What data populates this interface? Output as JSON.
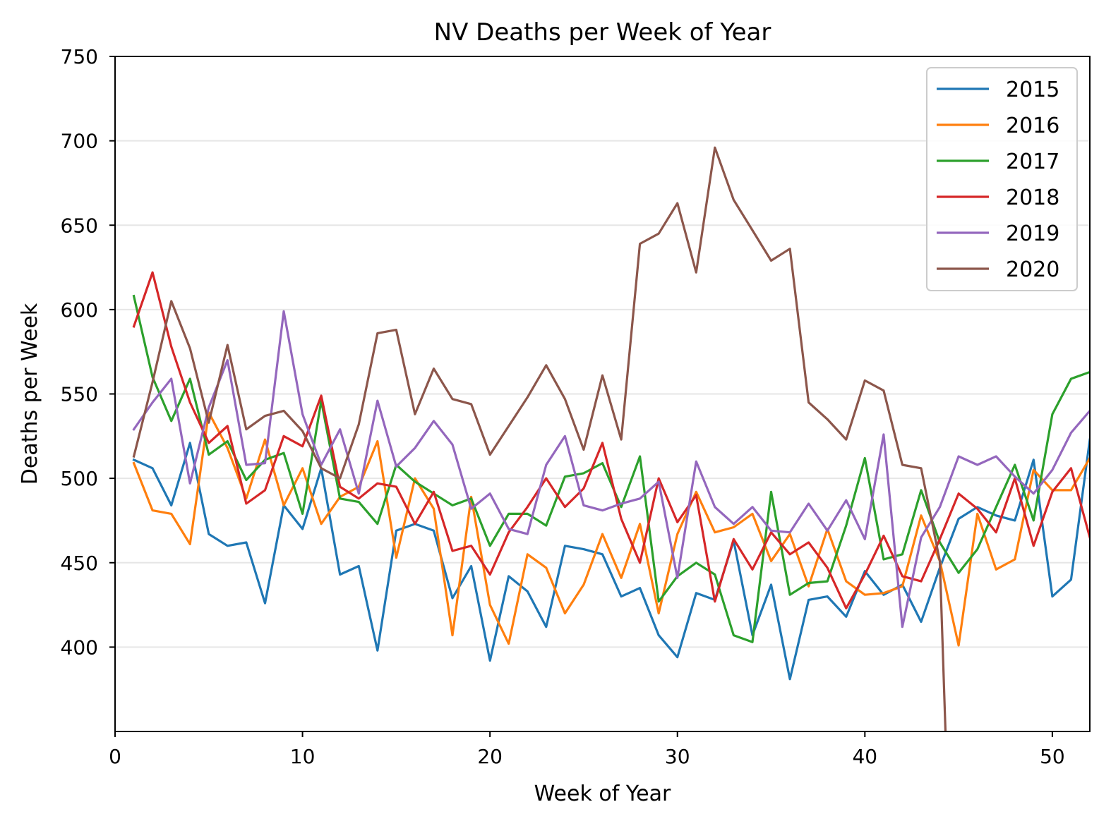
{
  "chart_data": {
    "type": "line",
    "title": "NV Deaths per Week of Year",
    "xlabel": "Week of Year",
    "ylabel": "Deaths per Week",
    "xlim": [
      0,
      52
    ],
    "ylim": [
      350,
      750
    ],
    "xticks": [
      0,
      10,
      20,
      30,
      40,
      50
    ],
    "yticks": [
      400,
      450,
      500,
      550,
      600,
      650,
      700,
      750
    ],
    "grid": "horizontal",
    "legend_position": "upper right",
    "series": [
      {
        "name": "2015",
        "color": "#1f77b4",
        "x": [
          1,
          2,
          3,
          4,
          5,
          6,
          7,
          8,
          9,
          10,
          11,
          12,
          13,
          14,
          15,
          16,
          17,
          18,
          19,
          20,
          21,
          22,
          23,
          24,
          25,
          26,
          27,
          28,
          29,
          30,
          31,
          32,
          33,
          34,
          35,
          36,
          37,
          38,
          39,
          40,
          41,
          42,
          43,
          44,
          45,
          46,
          47,
          48,
          49,
          50,
          51,
          52
        ],
        "values": [
          511,
          506,
          484,
          521,
          467,
          460,
          462,
          426,
          484,
          470,
          506,
          443,
          448,
          398,
          469,
          473,
          469,
          429,
          448,
          392,
          442,
          433,
          412,
          460,
          458,
          455,
          430,
          435,
          407,
          394,
          432,
          428,
          463,
          407,
          437,
          381,
          428,
          430,
          418,
          445,
          431,
          437,
          415,
          447,
          476,
          483,
          478,
          475,
          511,
          430,
          440,
          523
        ]
      },
      {
        "name": "2016",
        "color": "#ff7f0e",
        "x": [
          1,
          2,
          3,
          4,
          5,
          6,
          7,
          8,
          9,
          10,
          11,
          12,
          13,
          14,
          15,
          16,
          17,
          18,
          19,
          20,
          21,
          22,
          23,
          24,
          25,
          26,
          27,
          28,
          29,
          30,
          31,
          32,
          33,
          34,
          35,
          36,
          37,
          38,
          39,
          40,
          41,
          42,
          43,
          44,
          45,
          46,
          47,
          48,
          49,
          50,
          51,
          52
        ],
        "values": [
          509,
          481,
          479,
          461,
          539,
          518,
          488,
          523,
          484,
          506,
          473,
          489,
          495,
          522,
          453,
          500,
          482,
          407,
          489,
          425,
          402,
          455,
          447,
          420,
          437,
          467,
          441,
          473,
          420,
          467,
          492,
          468,
          471,
          479,
          451,
          467,
          436,
          470,
          439,
          431,
          432,
          436,
          478,
          451,
          401,
          479,
          446,
          452,
          505,
          493,
          493,
          512
        ]
      },
      {
        "name": "2017",
        "color": "#2ca02c",
        "x": [
          1,
          2,
          3,
          4,
          5,
          6,
          7,
          8,
          9,
          10,
          11,
          12,
          13,
          14,
          15,
          16,
          17,
          18,
          19,
          20,
          21,
          22,
          23,
          24,
          25,
          26,
          27,
          28,
          29,
          30,
          31,
          32,
          33,
          34,
          35,
          36,
          37,
          38,
          39,
          40,
          41,
          42,
          43,
          44,
          45,
          46,
          47,
          48,
          49,
          50,
          51,
          52
        ],
        "values": [
          608,
          560,
          534,
          559,
          514,
          522,
          499,
          511,
          515,
          479,
          546,
          488,
          486,
          473,
          508,
          498,
          491,
          484,
          488,
          460,
          479,
          479,
          472,
          501,
          503,
          509,
          483,
          513,
          427,
          442,
          450,
          443,
          407,
          403,
          492,
          431,
          438,
          439,
          472,
          512,
          452,
          455,
          493,
          462,
          444,
          458,
          483,
          508,
          475,
          538,
          559,
          563
        ]
      },
      {
        "name": "2018",
        "color": "#d62728",
        "x": [
          1,
          2,
          3,
          4,
          5,
          6,
          7,
          8,
          9,
          10,
          11,
          12,
          13,
          14,
          15,
          16,
          17,
          18,
          19,
          20,
          21,
          22,
          23,
          24,
          25,
          26,
          27,
          28,
          29,
          30,
          31,
          32,
          33,
          34,
          35,
          36,
          37,
          38,
          39,
          40,
          41,
          42,
          43,
          44,
          45,
          46,
          47,
          48,
          49,
          50,
          51,
          52
        ],
        "values": [
          590,
          622,
          578,
          545,
          521,
          531,
          485,
          493,
          525,
          519,
          549,
          495,
          488,
          497,
          495,
          473,
          492,
          457,
          460,
          443,
          468,
          483,
          500,
          483,
          494,
          521,
          476,
          450,
          500,
          474,
          490,
          427,
          464,
          446,
          468,
          455,
          462,
          447,
          423,
          443,
          466,
          442,
          439,
          464,
          491,
          482,
          468,
          500,
          460,
          492,
          506,
          465
        ]
      },
      {
        "name": "2019",
        "color": "#9467bd",
        "x": [
          1,
          2,
          3,
          4,
          5,
          6,
          7,
          8,
          9,
          10,
          11,
          12,
          13,
          14,
          15,
          16,
          17,
          18,
          19,
          20,
          21,
          22,
          23,
          24,
          25,
          26,
          27,
          28,
          29,
          30,
          31,
          32,
          33,
          34,
          35,
          36,
          37,
          38,
          39,
          40,
          41,
          42,
          43,
          44,
          45,
          46,
          47,
          48,
          49,
          50,
          51,
          52
        ],
        "values": [
          529,
          545,
          559,
          497,
          542,
          570,
          508,
          509,
          599,
          538,
          508,
          529,
          491,
          546,
          507,
          518,
          534,
          520,
          482,
          491,
          470,
          467,
          508,
          525,
          484,
          481,
          485,
          488,
          498,
          441,
          510,
          483,
          473,
          483,
          469,
          468,
          485,
          469,
          487,
          464,
          526,
          412,
          465,
          483,
          513,
          508,
          513,
          501,
          491,
          505,
          527,
          540
        ]
      },
      {
        "name": "2020",
        "color": "#8c564b",
        "x": [
          1,
          2,
          3,
          4,
          5,
          6,
          7,
          8,
          9,
          10,
          11,
          12,
          13,
          14,
          15,
          16,
          17,
          18,
          19,
          20,
          21,
          22,
          23,
          24,
          25,
          26,
          27,
          28,
          29,
          30,
          31,
          32,
          33,
          34,
          35,
          36,
          37,
          38,
          39,
          40,
          41,
          42,
          43,
          44,
          44.3
        ],
        "values": [
          513,
          557,
          605,
          577,
          533,
          579,
          529,
          537,
          540,
          528,
          506,
          500,
          532,
          586,
          588,
          538,
          565,
          547,
          544,
          514,
          531,
          548,
          567,
          547,
          517,
          561,
          523,
          639,
          645,
          663,
          622,
          696,
          665,
          647,
          629,
          636,
          545,
          535,
          523,
          558,
          552,
          508,
          506,
          451,
          350
        ]
      }
    ]
  }
}
